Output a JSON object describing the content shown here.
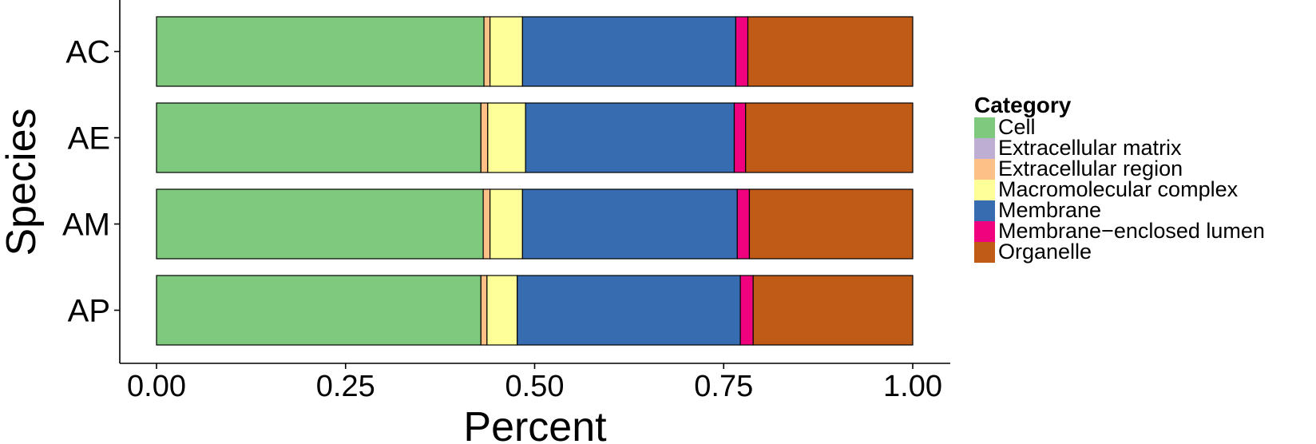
{
  "chart_data": {
    "type": "bar",
    "orientation": "horizontal",
    "stacked": true,
    "title": "",
    "xlabel": "Percent",
    "ylabel": "Species",
    "xlim": [
      0,
      1
    ],
    "x_ticks": [
      "0.00",
      "0.25",
      "0.50",
      "0.75",
      "1.00"
    ],
    "categories": [
      "AC",
      "AE",
      "AM",
      "AP"
    ],
    "grid": false,
    "legend": {
      "title": "Category",
      "position": "right"
    },
    "series": [
      {
        "name": "Cell",
        "color": "#7fc97f",
        "values": [
          0.433,
          0.429,
          0.432,
          0.429
        ]
      },
      {
        "name": "Extracellular matrix",
        "color": "#beaed4",
        "values": [
          0.0,
          0.0,
          0.0,
          0.0
        ]
      },
      {
        "name": "Extracellular region",
        "color": "#fdc086",
        "values": [
          0.008,
          0.009,
          0.009,
          0.008
        ]
      },
      {
        "name": "Macromolecular complex",
        "color": "#ffff99",
        "values": [
          0.043,
          0.05,
          0.043,
          0.04
        ]
      },
      {
        "name": "Membrane",
        "color": "#386cb0",
        "values": [
          0.282,
          0.276,
          0.284,
          0.295
        ]
      },
      {
        "name": "Membrane−enclosed lumen",
        "color": "#f0027f",
        "values": [
          0.016,
          0.015,
          0.016,
          0.017
        ]
      },
      {
        "name": "Organelle",
        "color": "#bf5b17",
        "values": [
          0.218,
          0.221,
          0.216,
          0.211
        ]
      }
    ]
  }
}
